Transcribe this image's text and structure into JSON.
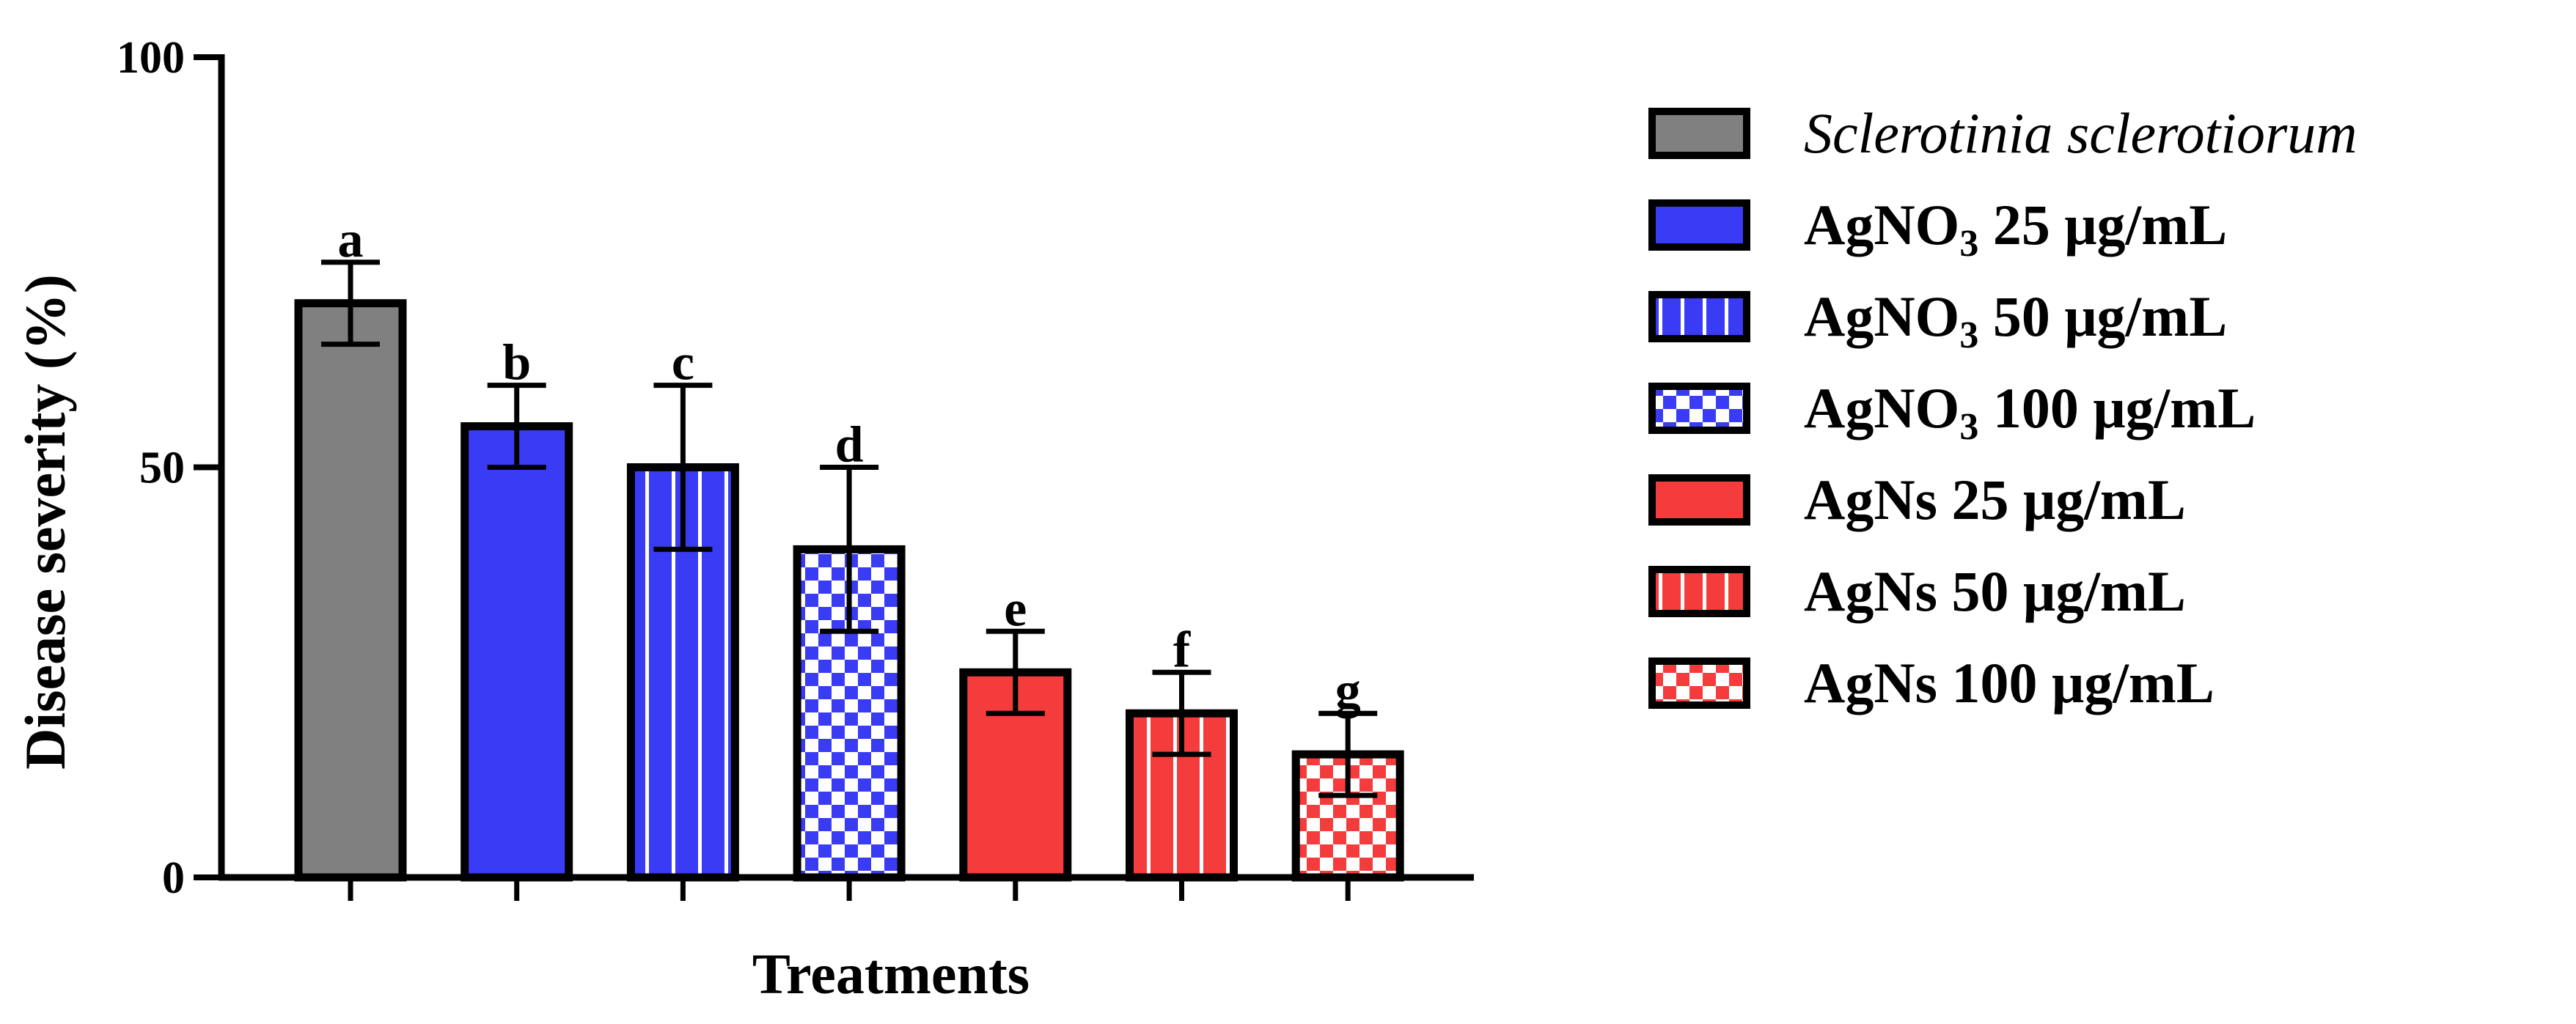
{
  "chart_data": {
    "type": "bar",
    "title": "",
    "xlabel": "Treatments",
    "ylabel": "Disease severity (%)",
    "ylim": [
      0,
      100
    ],
    "yticks": [
      "0",
      "50",
      "100"
    ],
    "bars": [
      {
        "value": 70,
        "error": 5,
        "letter": "a",
        "color": "#808080",
        "pattern": "solid"
      },
      {
        "value": 55,
        "error": 5,
        "letter": "b",
        "color": "#3a3cf5",
        "pattern": "solid"
      },
      {
        "value": 50,
        "error": 10,
        "letter": "c",
        "color": "#3a3cf5",
        "pattern": "stripes"
      },
      {
        "value": 40,
        "error": 10,
        "letter": "d",
        "color": "#3a3cf5",
        "pattern": "checker"
      },
      {
        "value": 25,
        "error": 5,
        "letter": "e",
        "color": "#f53c3c",
        "pattern": "solid"
      },
      {
        "value": 20,
        "error": 5,
        "letter": "f",
        "color": "#f53c3c",
        "pattern": "stripes"
      },
      {
        "value": 15,
        "error": 5,
        "letter": "g",
        "color": "#f53c3c",
        "pattern": "checker"
      }
    ],
    "legend": [
      {
        "text": "Sclerotinia sclerotiorum",
        "italic": true,
        "color": "#808080",
        "pattern": "solid"
      },
      {
        "base": "AgNO",
        "sub": "3",
        "rest": " 25 μg/mL",
        "color": "#3a3cf5",
        "pattern": "solid"
      },
      {
        "base": "AgNO",
        "sub": "3",
        "rest": " 50 μg/mL",
        "color": "#3a3cf5",
        "pattern": "stripes"
      },
      {
        "base": "AgNO",
        "sub": "3",
        "rest": " 100 μg/mL",
        "color": "#3a3cf5",
        "pattern": "checker"
      },
      {
        "text": "AgNs 25 μg/mL",
        "color": "#f53c3c",
        "pattern": "solid"
      },
      {
        "text": "AgNs 50 μg/mL",
        "color": "#f53c3c",
        "pattern": "stripes"
      },
      {
        "text": "AgNs 100 μg/mL",
        "color": "#f53c3c",
        "pattern": "checker"
      }
    ],
    "legend_position": "right",
    "grid": false
  }
}
